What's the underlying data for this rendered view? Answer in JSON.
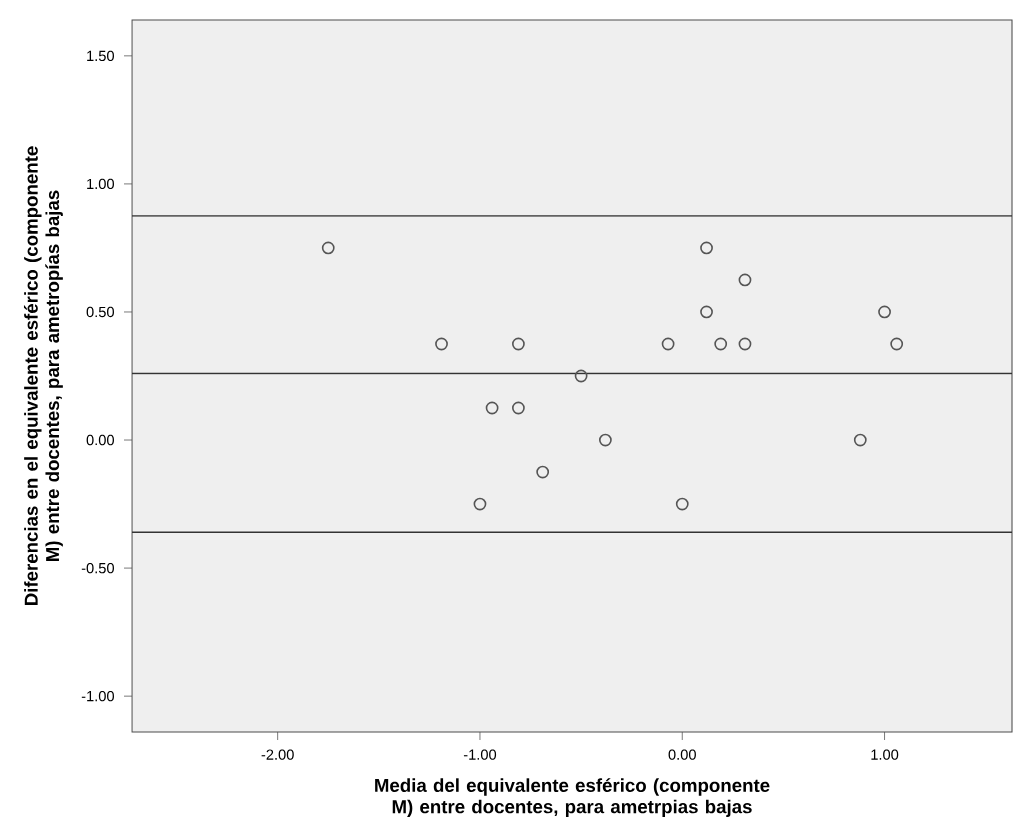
{
  "chart_data": {
    "type": "scatter",
    "xlabel": "Media del equivalente esférico (componente M) entre docentes, para ametrpias bajas",
    "ylabel": "Diferencias en el equivalente esférico (componente M) entre docentes, para ametropías bajas",
    "xlim": [
      -2.72,
      1.63
    ],
    "ylim": [
      -1.14,
      1.64
    ],
    "xticks": [
      {
        "value": -2,
        "label": "-2.00"
      },
      {
        "value": -1,
        "label": "-1.00"
      },
      {
        "value": 0,
        "label": "0.00"
      },
      {
        "value": 1,
        "label": "1.00"
      }
    ],
    "yticks": [
      {
        "value": -1,
        "label": "-1.00"
      },
      {
        "value": -0.5,
        "label": "-0.50"
      },
      {
        "value": 0,
        "label": "0.00"
      },
      {
        "value": 0.5,
        "label": "0.50"
      },
      {
        "value": 1,
        "label": "1.00"
      },
      {
        "value": 1.5,
        "label": "1.50"
      }
    ],
    "marker": "circle",
    "grid": false,
    "ref_lines": [
      {
        "axis": "y",
        "value": 0.875,
        "color": "#333333"
      },
      {
        "axis": "y",
        "value": 0.26,
        "color": "#333333"
      },
      {
        "axis": "y",
        "value": -0.36,
        "color": "#333333"
      }
    ],
    "series": [
      {
        "color": "#555555",
        "x": [
          -1.75,
          -1.19,
          -0.81,
          -0.5,
          -0.07,
          0.12,
          0.12,
          0.19,
          0.31,
          0.31,
          1.0,
          1.06,
          -0.94,
          -0.81,
          -0.38,
          0.88,
          -0.69,
          -1.0,
          0.0
        ],
        "values": [
          0.75,
          0.375,
          0.375,
          0.25,
          0.375,
          0.75,
          0.5,
          0.375,
          0.625,
          0.375,
          0.5,
          0.375,
          0.125,
          0.125,
          0.0,
          0.0,
          -0.125,
          -0.25,
          -0.25
        ]
      }
    ]
  }
}
